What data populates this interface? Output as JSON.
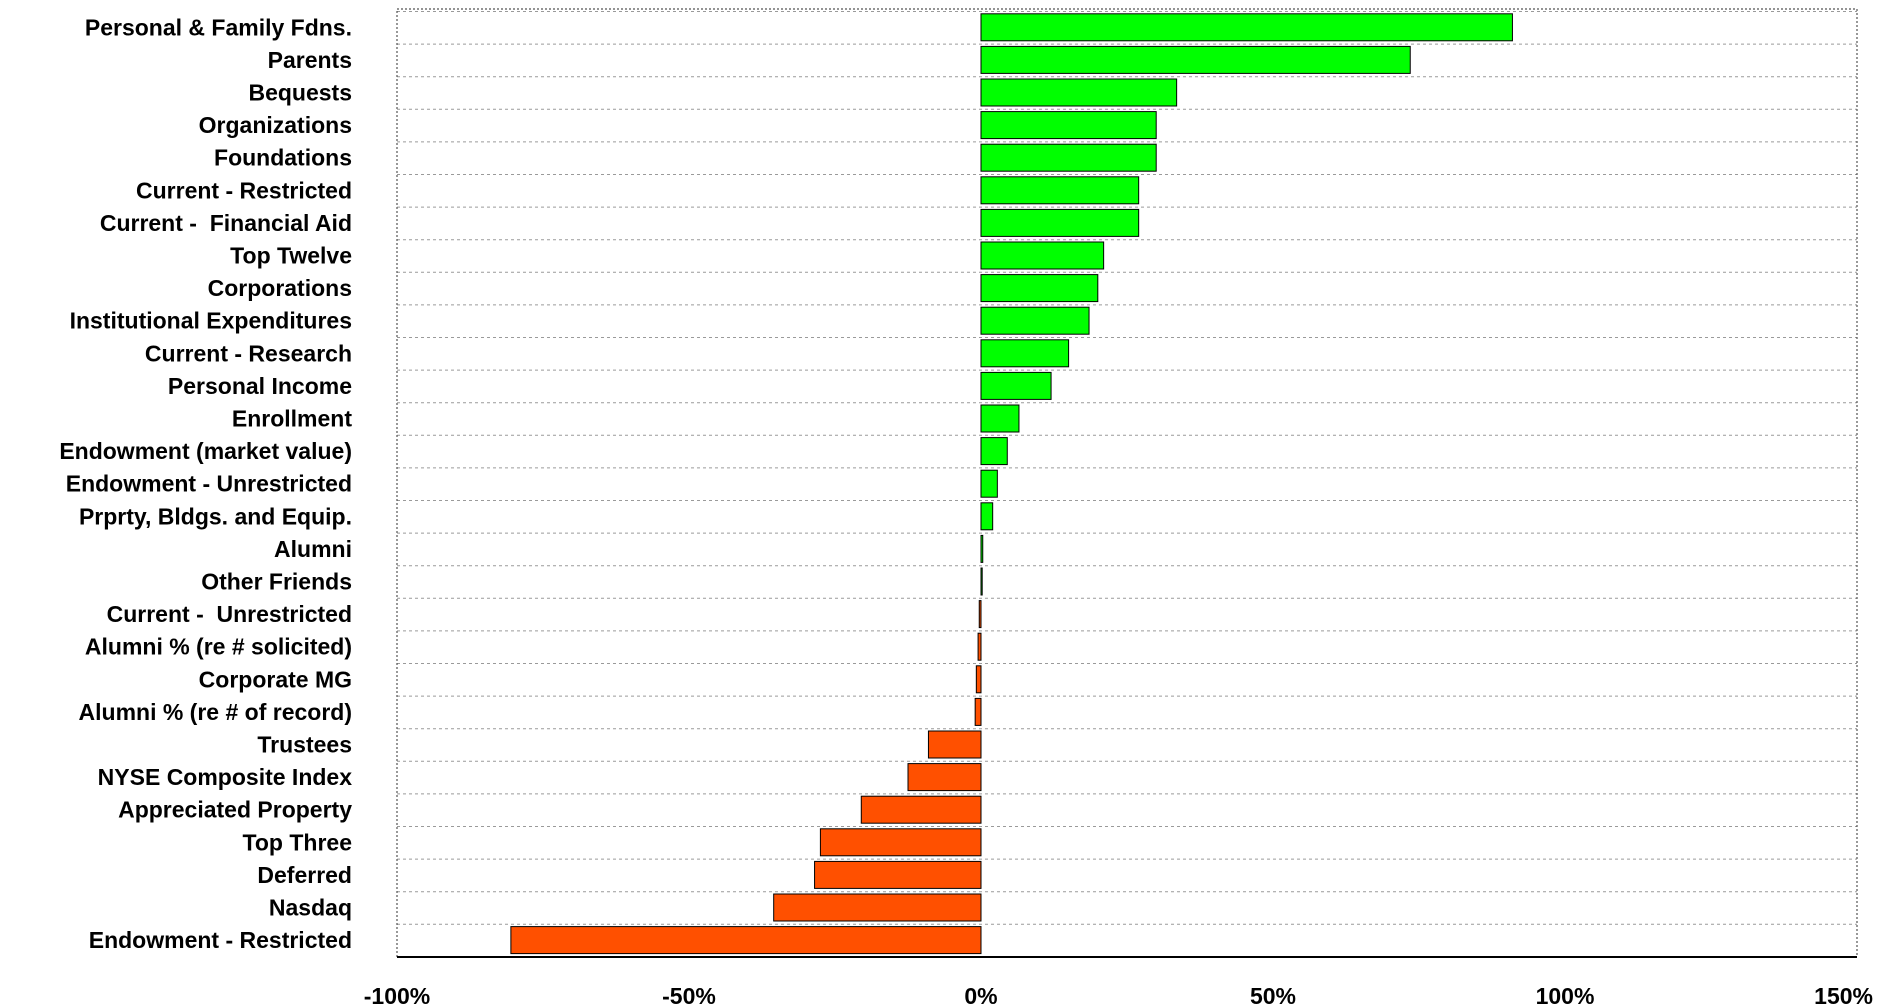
{
  "chart_data": {
    "type": "bar",
    "orientation": "horizontal",
    "title": "",
    "xlabel": "",
    "ylabel": "",
    "xlim": [
      -100,
      150
    ],
    "x_ticks": [
      -100,
      -50,
      0,
      50,
      100,
      150
    ],
    "x_tick_labels": [
      "-100%",
      "-50%",
      "0%",
      "50%",
      "100%",
      "150%"
    ],
    "grid": "horizontal dashed",
    "colors": {
      "positive": "#00ff00",
      "negative": "#ff5000",
      "bar_border": "#000000"
    },
    "categories": [
      "Personal & Family Fdns.",
      "Parents",
      "Bequests",
      "Organizations",
      "Foundations",
      "Current - Restricted",
      "Current -  Financial Aid",
      "Top Twelve",
      "Corporations",
      "Institutional Expenditures",
      "Current - Research",
      "Personal Income",
      "Enrollment",
      "Endowment (market value)",
      "Endowment - Unrestricted",
      "Prprty, Bldgs. and Equip.",
      "Alumni",
      "Other Friends",
      "Current -  Unrestricted",
      "Alumni % (re # solicited)",
      "Corporate MG",
      "Alumni % (re # of record)",
      "Trustees",
      "NYSE Composite Index",
      "Appreciated Property",
      "Top Three",
      "Deferred",
      "Nasdaq",
      "Endowment - Restricted"
    ],
    "values": [
      91,
      73.5,
      33.5,
      30,
      30,
      27,
      27,
      21,
      20,
      18.5,
      15,
      12,
      6.5,
      4.5,
      2.8,
      2,
      0.3,
      0.1,
      -0.3,
      -0.5,
      -0.8,
      -1,
      -9,
      -12.5,
      -20.5,
      -27.5,
      -28.5,
      -35.5,
      -80.5
    ]
  }
}
